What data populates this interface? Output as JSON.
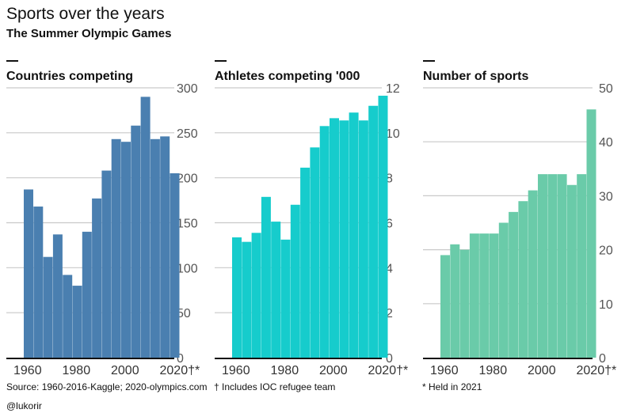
{
  "title": "Sports over the years",
  "subtitle": "The Summer Olympic Games",
  "notes": {
    "source": "Source: 1960-2016-Kaggle; 2020-olympics.com",
    "refugee": "† Includes IOC refugee team",
    "held": "* Held in 2021",
    "credit": "@lukorir"
  },
  "colors": {
    "countries": "#4a7fb0",
    "athletes": "#16cccc",
    "sports": "#6acba9",
    "grid": "#c9c9c9",
    "axis": "#111111"
  },
  "chart_data": [
    {
      "type": "bar",
      "title": "Countries competing",
      "x": [
        1960,
        1964,
        1968,
        1972,
        1976,
        1980,
        1984,
        1988,
        1992,
        1996,
        2000,
        2004,
        2008,
        2012,
        2016,
        2020
      ],
      "values": [
        187,
        168,
        112,
        137,
        92,
        80,
        140,
        177,
        208,
        243,
        240,
        258,
        290,
        243,
        246,
        205
      ],
      "ylim": [
        0,
        300
      ],
      "yticks": [
        "0",
        "50",
        "100",
        "150",
        "200",
        "250",
        "300"
      ],
      "xticks": [
        "1960",
        "1980",
        "2000",
        "2020†*"
      ],
      "xtick_values": [
        1960,
        1980,
        2000,
        2020
      ],
      "grid": true
    },
    {
      "type": "bar",
      "title": "Athletes competing '000",
      "x": [
        1960,
        1964,
        1968,
        1972,
        1976,
        1980,
        1984,
        1988,
        1992,
        1996,
        2000,
        2004,
        2008,
        2012,
        2016,
        2020
      ],
      "values": [
        5.35,
        5.15,
        5.55,
        7.15,
        6.05,
        5.25,
        6.8,
        8.45,
        9.35,
        10.3,
        10.65,
        10.55,
        10.9,
        10.55,
        11.2,
        11.65
      ],
      "ylim": [
        0,
        12
      ],
      "yticks": [
        "0",
        "2",
        "4",
        "6",
        "8",
        "10",
        "12"
      ],
      "xticks": [
        "1960",
        "1980",
        "2000",
        "2020†*"
      ],
      "xtick_values": [
        1960,
        1980,
        2000,
        2020
      ],
      "grid": true
    },
    {
      "type": "bar",
      "title": "Number of sports",
      "x": [
        1960,
        1964,
        1968,
        1972,
        1976,
        1980,
        1984,
        1988,
        1992,
        1996,
        2000,
        2004,
        2008,
        2012,
        2016,
        2020
      ],
      "values": [
        19,
        21,
        20,
        23,
        23,
        23,
        25,
        27,
        29,
        31,
        34,
        34,
        34,
        32,
        34,
        46
      ],
      "ylim": [
        0,
        50
      ],
      "yticks": [
        "0",
        "10",
        "20",
        "30",
        "40",
        "50"
      ],
      "xticks": [
        "1960",
        "1980",
        "2000",
        "2020†*"
      ],
      "xtick_values": [
        1960,
        1980,
        2000,
        2020
      ],
      "grid": true
    }
  ]
}
